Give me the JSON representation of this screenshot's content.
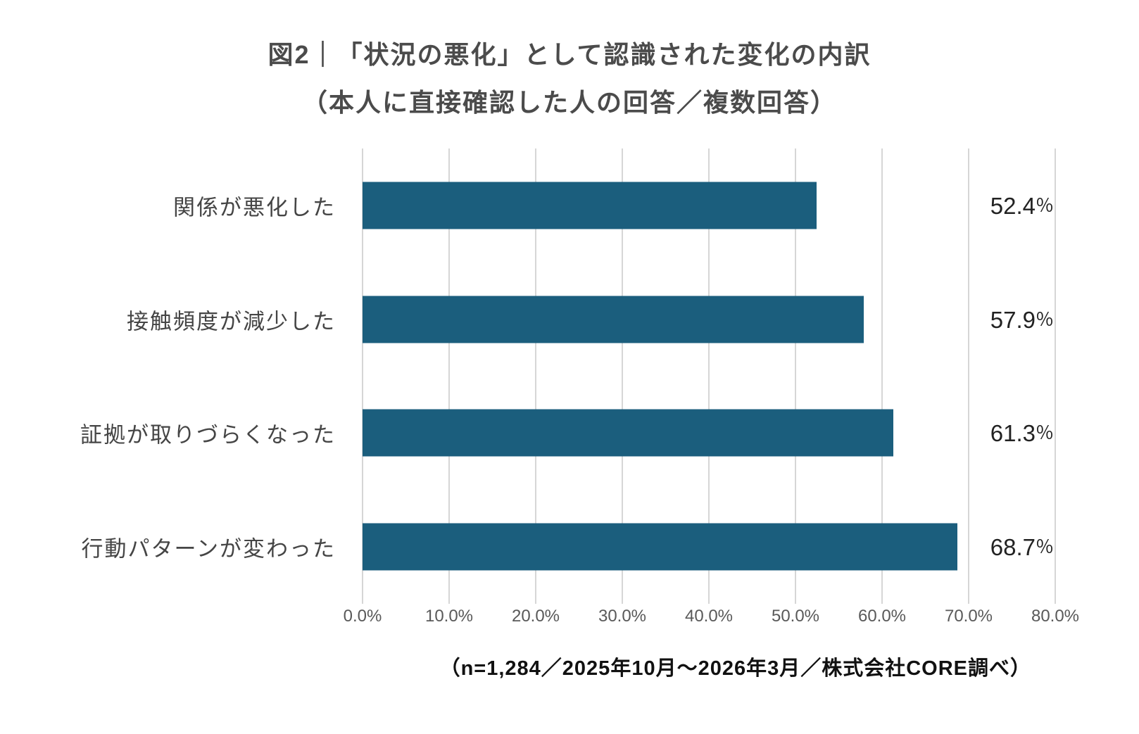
{
  "title": {
    "line1": "図2｜「状況の悪化」として認識された変化の内訳",
    "line2": "（本人に直接確認した人の回答／複数回答）"
  },
  "chart_data": {
    "type": "bar",
    "orientation": "horizontal",
    "title": "図2｜「状況の悪化」として認識された変化の内訳（本人に直接確認した人の回答／複数回答）",
    "categories": [
      "関係が悪化した",
      "接触頻度が減少した",
      "証拠が取りづらくなった",
      "行動パターンが変わった"
    ],
    "values": [
      52.4,
      57.9,
      61.3,
      68.7
    ],
    "value_labels": [
      "52.4",
      "57.9",
      "61.3",
      "68.7"
    ],
    "value_unit": "％",
    "x_ticks": [
      "0.0%",
      "10.0%",
      "20.0%",
      "30.0%",
      "40.0%",
      "50.0%",
      "60.0%",
      "70.0%",
      "80.0%"
    ],
    "xlim": [
      0,
      80
    ],
    "grid": "vertical-only",
    "legend": "none",
    "bar_color": "#1b5e7d",
    "gridline_color": "#d6d6d6"
  },
  "footnote": "（n=1,284／2025年10月～2026年3月／株式会社CORE調べ）"
}
